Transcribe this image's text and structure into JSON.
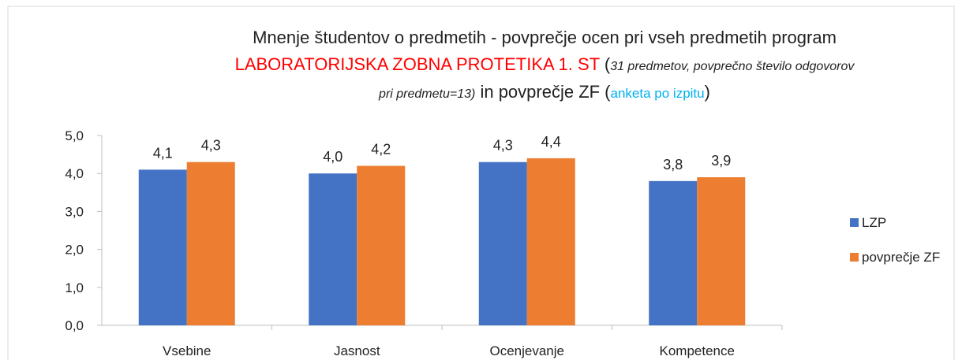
{
  "chart_data": {
    "type": "bar",
    "title": [
      [
        "Mnenje študentov o predmetih - povprečje ocen pri vseh predmetih program"
      ],
      [
        "LABORATORIJSKA ZOBNA PROTETIKA 1. ST",
        " (",
        "31 predmetov, povprečno število odgovorov"
      ],
      [
        "pri predmetu=13)",
        " in povprečje ZF (",
        "anketa po izpitu",
        ")"
      ]
    ],
    "categories": [
      "Vsebine",
      "Jasnost",
      "Ocenjevanje",
      "Kompetence"
    ],
    "series": [
      {
        "name": "LZP",
        "color": "#4472c4",
        "values": [
          4.1,
          4.0,
          4.3,
          3.8
        ],
        "value_labels": [
          "4,1",
          "4,0",
          "4,3",
          "3,8"
        ]
      },
      {
        "name": "povprečje ZF",
        "color": "#ed7d31",
        "values": [
          4.3,
          4.2,
          4.4,
          3.9
        ],
        "value_labels": [
          "4,3",
          "4,2",
          "4,4",
          "3,9"
        ]
      }
    ],
    "ylim": [
      0,
      5
    ],
    "yticks": [
      {
        "value": 0,
        "label": "0,0"
      },
      {
        "value": 1,
        "label": "1,0"
      },
      {
        "value": 2,
        "label": "2,0"
      },
      {
        "value": 3,
        "label": "3,0"
      },
      {
        "value": 4,
        "label": "4,0"
      },
      {
        "value": 5,
        "label": "5,0"
      }
    ],
    "legend": "right"
  }
}
